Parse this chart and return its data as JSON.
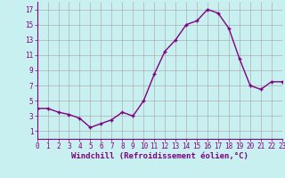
{
  "x": [
    0,
    1,
    2,
    3,
    4,
    5,
    6,
    7,
    8,
    9,
    10,
    11,
    12,
    13,
    14,
    15,
    16,
    17,
    18,
    19,
    20,
    21,
    22,
    23
  ],
  "y": [
    4.0,
    4.0,
    3.5,
    3.2,
    2.7,
    1.5,
    2.0,
    2.5,
    3.5,
    3.0,
    5.0,
    8.5,
    11.5,
    13.0,
    15.0,
    15.5,
    17.0,
    16.5,
    14.5,
    10.5,
    7.0,
    6.5,
    7.5,
    7.5
  ],
  "line_color": "#800080",
  "marker": "+",
  "bg_color": "#c8f0f0",
  "grid_color": "#b0b0b0",
  "xlabel": "Windchill (Refroidissement éolien,°C)",
  "xlim": [
    0,
    23
  ],
  "ylim": [
    0,
    18
  ],
  "yticks": [
    1,
    3,
    5,
    7,
    9,
    11,
    13,
    15,
    17
  ],
  "xticks": [
    0,
    1,
    2,
    3,
    4,
    5,
    6,
    7,
    8,
    9,
    10,
    11,
    12,
    13,
    14,
    15,
    16,
    17,
    18,
    19,
    20,
    21,
    22,
    23
  ],
  "tick_fontsize": 5.5,
  "label_fontsize": 6.5,
  "line_width": 1.0,
  "marker_size": 3
}
